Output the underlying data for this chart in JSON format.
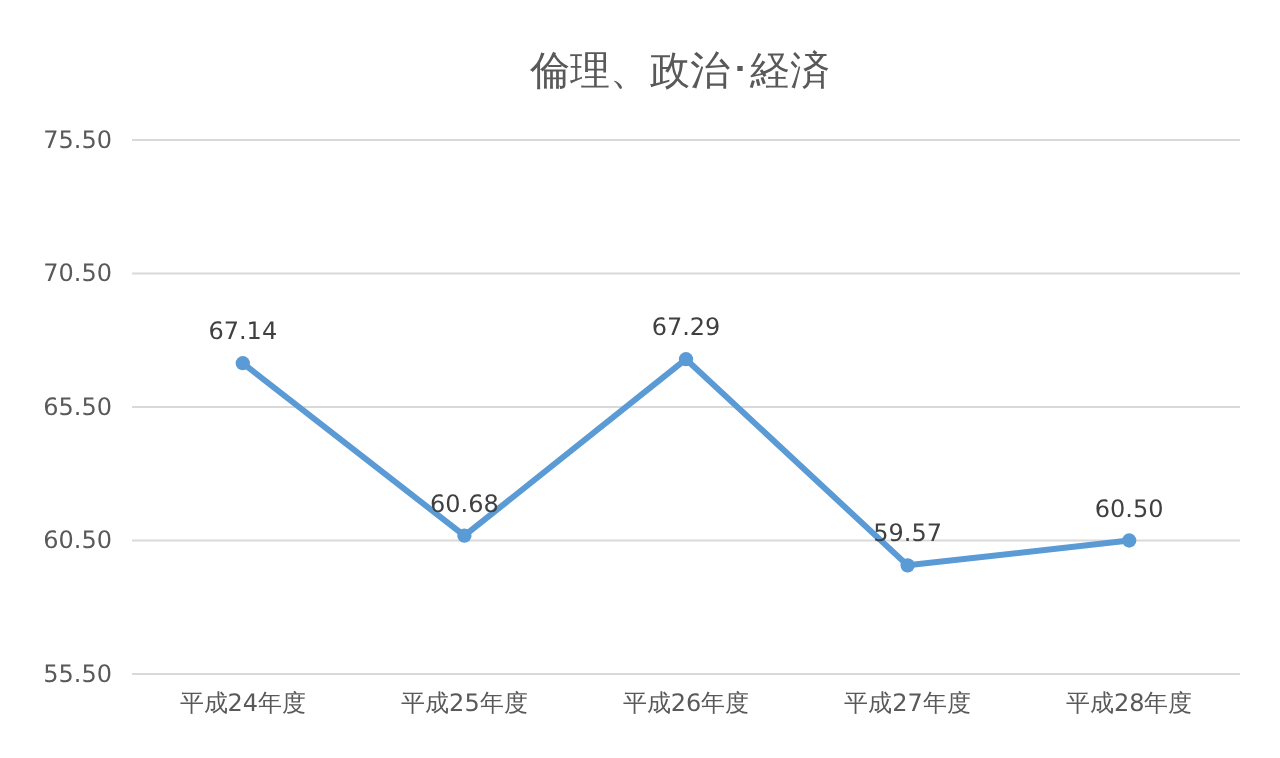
{
  "chart_data": {
    "type": "line",
    "title": "倫理、政治･経済",
    "categories": [
      "平成24年度",
      "平成25年度",
      "平成26年度",
      "平成27年度",
      "平成28年度"
    ],
    "series": [
      {
        "color": "#5b9bd5",
        "values": [
          67.14,
          60.68,
          67.29,
          59.57,
          60.5
        ],
        "value_labels": [
          "67.14",
          "60.68",
          "67.29",
          "59.57",
          "60.50"
        ]
      }
    ],
    "ylim": [
      55.5,
      75.5
    ],
    "yticks": [
      {
        "value": 55.5,
        "label": "55.50"
      },
      {
        "value": 60.5,
        "label": "60.50"
      },
      {
        "value": 65.5,
        "label": "65.50"
      },
      {
        "value": 70.5,
        "label": "70.50"
      },
      {
        "value": 75.5,
        "label": "75.50"
      }
    ],
    "grid": "y",
    "marker": "circle"
  }
}
